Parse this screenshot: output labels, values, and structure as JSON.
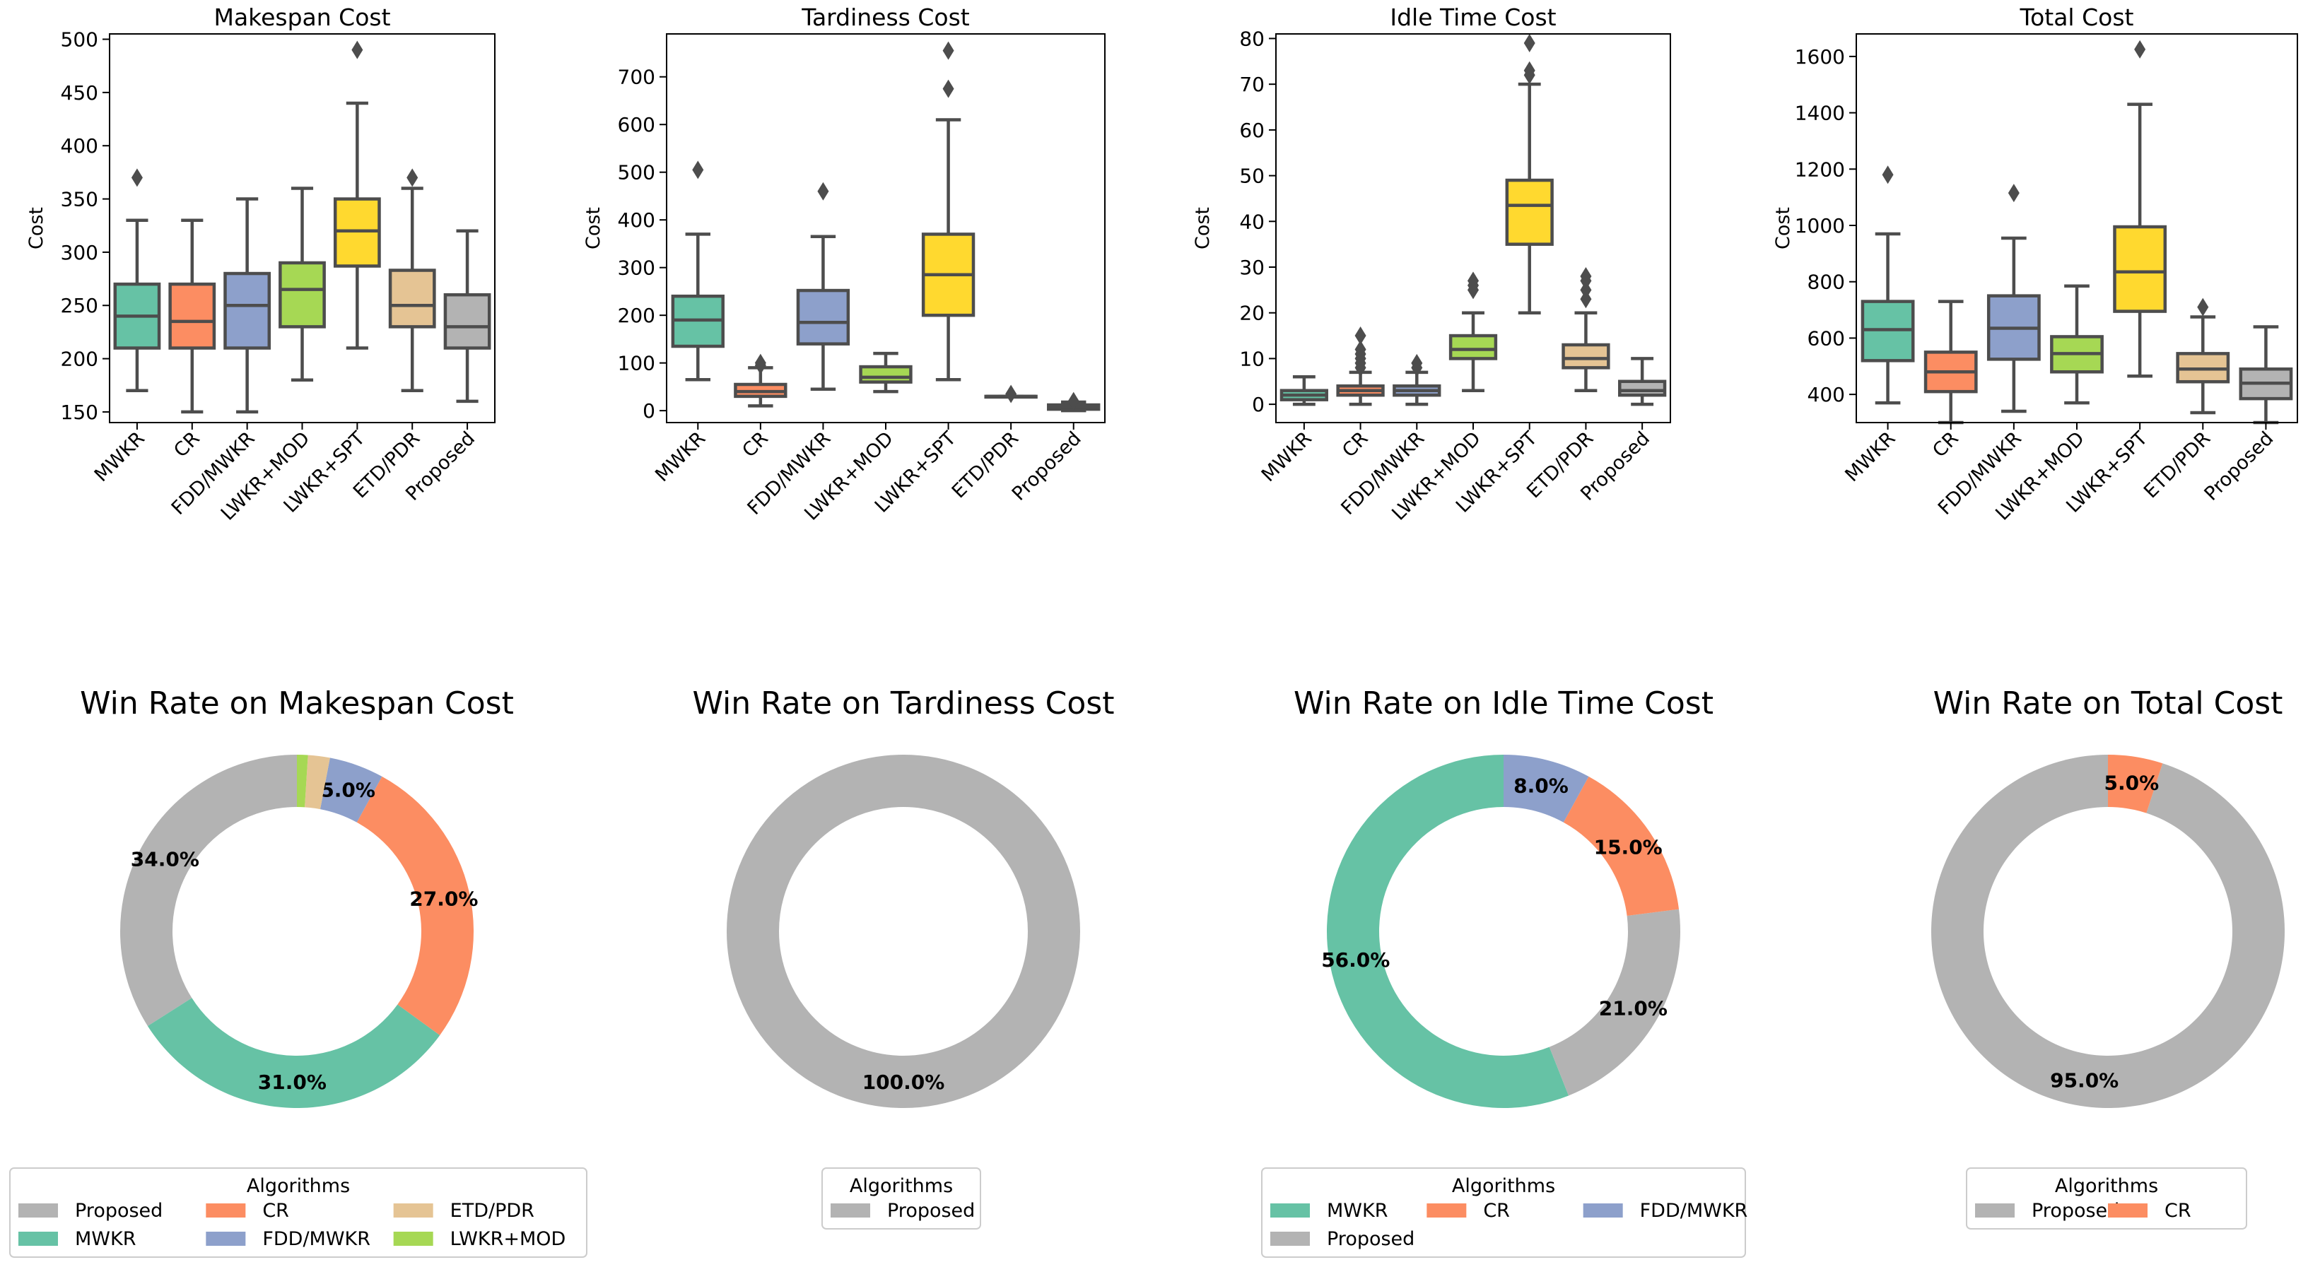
{
  "colors": {
    "MWKR": "#66c2a5",
    "CR": "#fc8d62",
    "FDD/MWKR": "#8da0cb",
    "LWKR+MOD": "#a6d854",
    "LWKR+SPT": "#ffd92f",
    "ETD/PDR": "#e5c494",
    "Proposed": "#b3b3b3"
  },
  "chart_data": [
    {
      "type": "box",
      "title": "Makespan Cost",
      "ylabel": "Cost",
      "ylim": [
        140,
        505
      ],
      "yticks": [
        150,
        200,
        250,
        300,
        350,
        400,
        450,
        500
      ],
      "categories": [
        "MWKR",
        "CR",
        "FDD/MWKR",
        "LWKR+MOD",
        "LWKR+SPT",
        "ETD/PDR",
        "Proposed"
      ],
      "boxes": [
        {
          "whislo": 170,
          "q1": 210,
          "med": 240,
          "q3": 270,
          "whishi": 330,
          "fliers": [
            370
          ]
        },
        {
          "whislo": 150,
          "q1": 210,
          "med": 235,
          "q3": 270,
          "whishi": 330,
          "fliers": []
        },
        {
          "whislo": 150,
          "q1": 210,
          "med": 250,
          "q3": 280,
          "whishi": 350,
          "fliers": []
        },
        {
          "whislo": 180,
          "q1": 230,
          "med": 265,
          "q3": 290,
          "whishi": 360,
          "fliers": []
        },
        {
          "whislo": 210,
          "q1": 287,
          "med": 320,
          "q3": 350,
          "whishi": 440,
          "fliers": [
            490
          ]
        },
        {
          "whislo": 170,
          "q1": 230,
          "med": 250,
          "q3": 283,
          "whishi": 360,
          "fliers": [
            370
          ]
        },
        {
          "whislo": 160,
          "q1": 210,
          "med": 230,
          "q3": 260,
          "whishi": 320,
          "fliers": []
        }
      ]
    },
    {
      "type": "box",
      "title": "Tardiness Cost",
      "ylabel": "Cost",
      "ylim": [
        -25,
        790
      ],
      "yticks": [
        0,
        100,
        200,
        300,
        400,
        500,
        600,
        700
      ],
      "categories": [
        "MWKR",
        "CR",
        "FDD/MWKR",
        "LWKR+MOD",
        "LWKR+SPT",
        "ETD/PDR",
        "Proposed"
      ],
      "boxes": [
        {
          "whislo": 65,
          "q1": 135,
          "med": 190,
          "q3": 240,
          "whishi": 370,
          "fliers": [
            505
          ]
        },
        {
          "whislo": 10,
          "q1": 30,
          "med": 40,
          "q3": 55,
          "whishi": 90,
          "fliers": [
            95,
            100
          ]
        },
        {
          "whislo": 45,
          "q1": 140,
          "med": 185,
          "q3": 252,
          "whishi": 365,
          "fliers": [
            460
          ]
        },
        {
          "whislo": 40,
          "q1": 60,
          "med": 70,
          "q3": 92,
          "whishi": 120,
          "fliers": []
        },
        {
          "whislo": 65,
          "q1": 200,
          "med": 285,
          "q3": 370,
          "whishi": 610,
          "fliers": [
            675,
            755
          ]
        },
        {
          "whislo": 30,
          "q1": 30,
          "med": 30,
          "q3": 30,
          "whishi": 30,
          "fliers": [
            35
          ]
        },
        {
          "whislo": 0,
          "q1": 3,
          "med": 7,
          "q3": 12,
          "whishi": 18,
          "fliers": [
            20
          ]
        }
      ]
    },
    {
      "type": "box",
      "title": "Idle Time Cost",
      "ylabel": "Cost",
      "ylim": [
        -4,
        81
      ],
      "yticks": [
        0,
        10,
        20,
        30,
        40,
        50,
        60,
        70,
        80
      ],
      "categories": [
        "MWKR",
        "CR",
        "FDD/MWKR",
        "LWKR+MOD",
        "LWKR+SPT",
        "ETD/PDR",
        "Proposed"
      ],
      "boxes": [
        {
          "whislo": 0,
          "q1": 1,
          "med": 2,
          "q3": 3,
          "whishi": 6,
          "fliers": []
        },
        {
          "whislo": 0,
          "q1": 2,
          "med": 3,
          "q3": 4,
          "whishi": 7,
          "fliers": [
            8,
            9,
            10,
            11,
            12,
            15
          ]
        },
        {
          "whislo": 0,
          "q1": 2,
          "med": 3,
          "q3": 4,
          "whishi": 7,
          "fliers": [
            8,
            9
          ]
        },
        {
          "whislo": 3,
          "q1": 10,
          "med": 12,
          "q3": 15,
          "whishi": 20,
          "fliers": [
            25,
            26,
            27
          ]
        },
        {
          "whislo": 20,
          "q1": 35,
          "med": 43.5,
          "q3": 49,
          "whishi": 70,
          "fliers": [
            72,
            73,
            79
          ]
        },
        {
          "whislo": 3,
          "q1": 8,
          "med": 10,
          "q3": 13,
          "whishi": 20,
          "fliers": [
            23,
            25,
            27,
            28
          ]
        },
        {
          "whislo": 0,
          "q1": 2,
          "med": 3,
          "q3": 5,
          "whishi": 10,
          "fliers": []
        }
      ]
    },
    {
      "type": "box",
      "title": "Total Cost",
      "ylabel": "Cost",
      "ylim": [
        300,
        1680
      ],
      "yticks": [
        400,
        600,
        800,
        1000,
        1200,
        1400,
        1600
      ],
      "categories": [
        "MWKR",
        "CR",
        "FDD/MWKR",
        "LWKR+MOD",
        "LWKR+SPT",
        "ETD/PDR",
        "Proposed"
      ],
      "boxes": [
        {
          "whislo": 370,
          "q1": 520,
          "med": 630,
          "q3": 730,
          "whishi": 970,
          "fliers": [
            1180
          ]
        },
        {
          "whislo": 300,
          "q1": 410,
          "med": 480,
          "q3": 550,
          "whishi": 730,
          "fliers": []
        },
        {
          "whislo": 340,
          "q1": 525,
          "med": 635,
          "q3": 750,
          "whishi": 955,
          "fliers": [
            1115
          ]
        },
        {
          "whislo": 370,
          "q1": 480,
          "med": 545,
          "q3": 605,
          "whishi": 785,
          "fliers": []
        },
        {
          "whislo": 465,
          "q1": 695,
          "med": 835,
          "q3": 995,
          "whishi": 1430,
          "fliers": [
            1625
          ]
        },
        {
          "whislo": 335,
          "q1": 445,
          "med": 490,
          "q3": 545,
          "whishi": 675,
          "fliers": [
            710
          ]
        },
        {
          "whislo": 300,
          "q1": 385,
          "med": 440,
          "q3": 490,
          "whishi": 640,
          "fliers": []
        }
      ]
    },
    {
      "type": "pie",
      "title": "Win Rate on Makespan Cost",
      "slices": [
        {
          "label": "Proposed",
          "value": 34.0,
          "pct_label": "34.0%"
        },
        {
          "label": "MWKR",
          "value": 31.0,
          "pct_label": "31.0%"
        },
        {
          "label": "CR",
          "value": 27.0,
          "pct_label": "27.0%"
        },
        {
          "label": "FDD/MWKR",
          "value": 5.0,
          "pct_label": "5.0%"
        },
        {
          "label": "ETD/PDR",
          "value": 2.0,
          "pct_label": ""
        },
        {
          "label": "LWKR+MOD",
          "value": 1.0,
          "pct_label": ""
        }
      ],
      "legend_title": "Algorithms",
      "legend_columns": 3,
      "legend_items": [
        "Proposed",
        "CR",
        "ETD/PDR",
        "MWKR",
        "FDD/MWKR",
        "LWKR+MOD"
      ]
    },
    {
      "type": "pie",
      "title": "Win Rate on Tardiness Cost",
      "slices": [
        {
          "label": "Proposed",
          "value": 100.0,
          "pct_label": "100.0%"
        }
      ],
      "legend_title": "Algorithms",
      "legend_columns": 1,
      "legend_items": [
        "Proposed"
      ]
    },
    {
      "type": "pie",
      "title": "Win Rate on Idle Time Cost",
      "slices": [
        {
          "label": "MWKR",
          "value": 56.0,
          "pct_label": "56.0%"
        },
        {
          "label": "Proposed",
          "value": 21.0,
          "pct_label": "21.0%"
        },
        {
          "label": "CR",
          "value": 15.0,
          "pct_label": "15.0%"
        },
        {
          "label": "FDD/MWKR",
          "value": 8.0,
          "pct_label": "8.0%"
        }
      ],
      "legend_title": "Algorithms",
      "legend_columns": 3,
      "legend_items": [
        "MWKR",
        "CR",
        "FDD/MWKR",
        "Proposed"
      ]
    },
    {
      "type": "pie",
      "title": "Win Rate on Total Cost",
      "slices": [
        {
          "label": "Proposed",
          "value": 95.0,
          "pct_label": "95.0%"
        },
        {
          "label": "CR",
          "value": 5.0,
          "pct_label": "5.0%"
        }
      ],
      "legend_title": "Algorithms",
      "legend_columns": 2,
      "legend_items": [
        "Proposed",
        "CR"
      ]
    }
  ]
}
